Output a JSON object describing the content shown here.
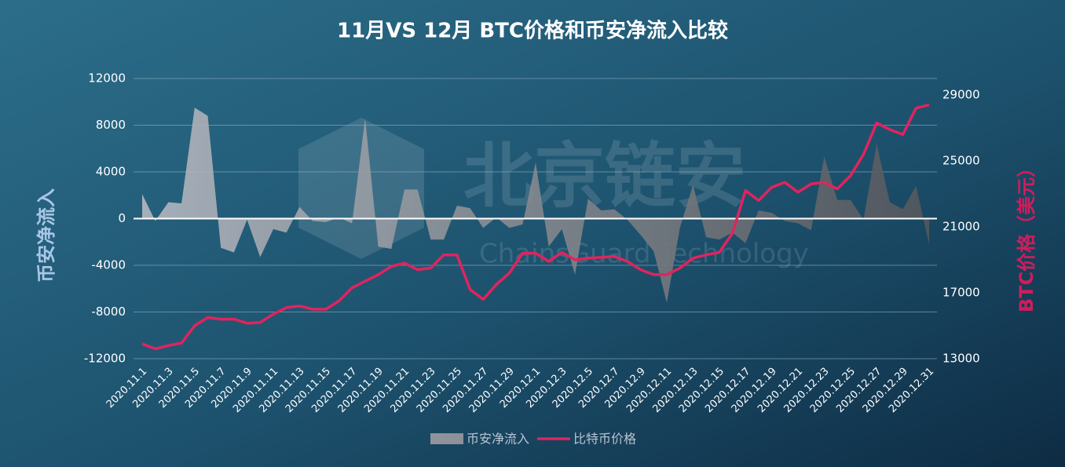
{
  "chart_data": {
    "type": "area_line",
    "title": "11月VS 12月 BTC价格和币安净流入比较",
    "y_label": "币安净流入",
    "y2_label": "BTC价格（美元）",
    "watermark": [
      "北京链安",
      "ChainsGuard Technology"
    ],
    "categories": [
      "2020.11.1",
      null,
      "2020.11.3",
      null,
      "2020.11.5",
      null,
      "2020.11.7",
      null,
      "2020.11.9",
      null,
      "2020.11.11",
      null,
      "2020.11.13",
      null,
      "2020.11.15",
      null,
      "2020.11.17",
      null,
      "2020.11.19",
      null,
      "2020.11.21",
      null,
      "2020.11.23",
      null,
      "2020.11.25",
      null,
      "2020.11.27",
      null,
      "2020.11.29",
      null,
      "2020.12.1",
      null,
      "2020.12.3",
      null,
      "2020.12.5",
      null,
      "2020.12.7",
      null,
      "2020.12.9",
      null,
      "2020.12.11",
      null,
      "2020.12.13",
      null,
      "2020.12.15",
      null,
      "2020.12.17",
      null,
      "2020.12.19",
      null,
      "2020.12.21",
      null,
      "2020.12.23",
      null,
      "2020.12.25",
      null,
      "2020.12.27",
      null,
      "2020.12.29",
      null,
      "2020.12.31"
    ],
    "series": [
      {
        "name": "币安净流入",
        "kind": "area",
        "color": "#b4b8c0",
        "axis": "y",
        "values": [
          2100,
          -200,
          1400,
          1300,
          9500,
          8800,
          -2500,
          -2900,
          -100,
          -3300,
          -900,
          -1200,
          1000,
          -200,
          -300,
          100,
          -400,
          8600,
          -2400,
          -2600,
          2500,
          2500,
          -1800,
          -1800,
          1100,
          900,
          -800,
          100,
          -800,
          -500,
          4800,
          -2400,
          -900,
          -4800,
          1700,
          700,
          800,
          -100,
          -1400,
          -2800,
          -7200,
          -800,
          2900,
          -1600,
          -1800,
          -1200,
          -2100,
          700,
          500,
          -200,
          -400,
          -1000,
          5300,
          1600,
          1600,
          -100,
          6400,
          1400,
          800,
          2800,
          -2200
        ]
      },
      {
        "name": "比特币价格",
        "kind": "line",
        "color": "#e0245e",
        "axis": "y2",
        "values": [
          13900,
          13600,
          13800,
          13950,
          15000,
          15500,
          15400,
          15400,
          15150,
          15200,
          15700,
          16100,
          16200,
          16000,
          16000,
          16500,
          17300,
          17700,
          18100,
          18600,
          18800,
          18400,
          18500,
          19300,
          19300,
          17200,
          16600,
          17500,
          18200,
          19400,
          19400,
          18900,
          19450,
          19000,
          19100,
          19150,
          19200,
          18900,
          18400,
          18100,
          18100,
          18500,
          19100,
          19300,
          19450,
          20600,
          23200,
          22600,
          23400,
          23700,
          23100,
          23600,
          23700,
          23300,
          24100,
          25400,
          27300,
          26900,
          26600,
          28200,
          28400
        ]
      }
    ],
    "ylim": [
      -12000,
      12000
    ],
    "yticks": [
      -12000,
      -8000,
      -4000,
      0,
      4000,
      8000,
      12000
    ],
    "y2lim": [
      13000,
      30000
    ],
    "y2ticks": [
      13000,
      17000,
      21000,
      25000,
      29000
    ],
    "grid": true
  }
}
